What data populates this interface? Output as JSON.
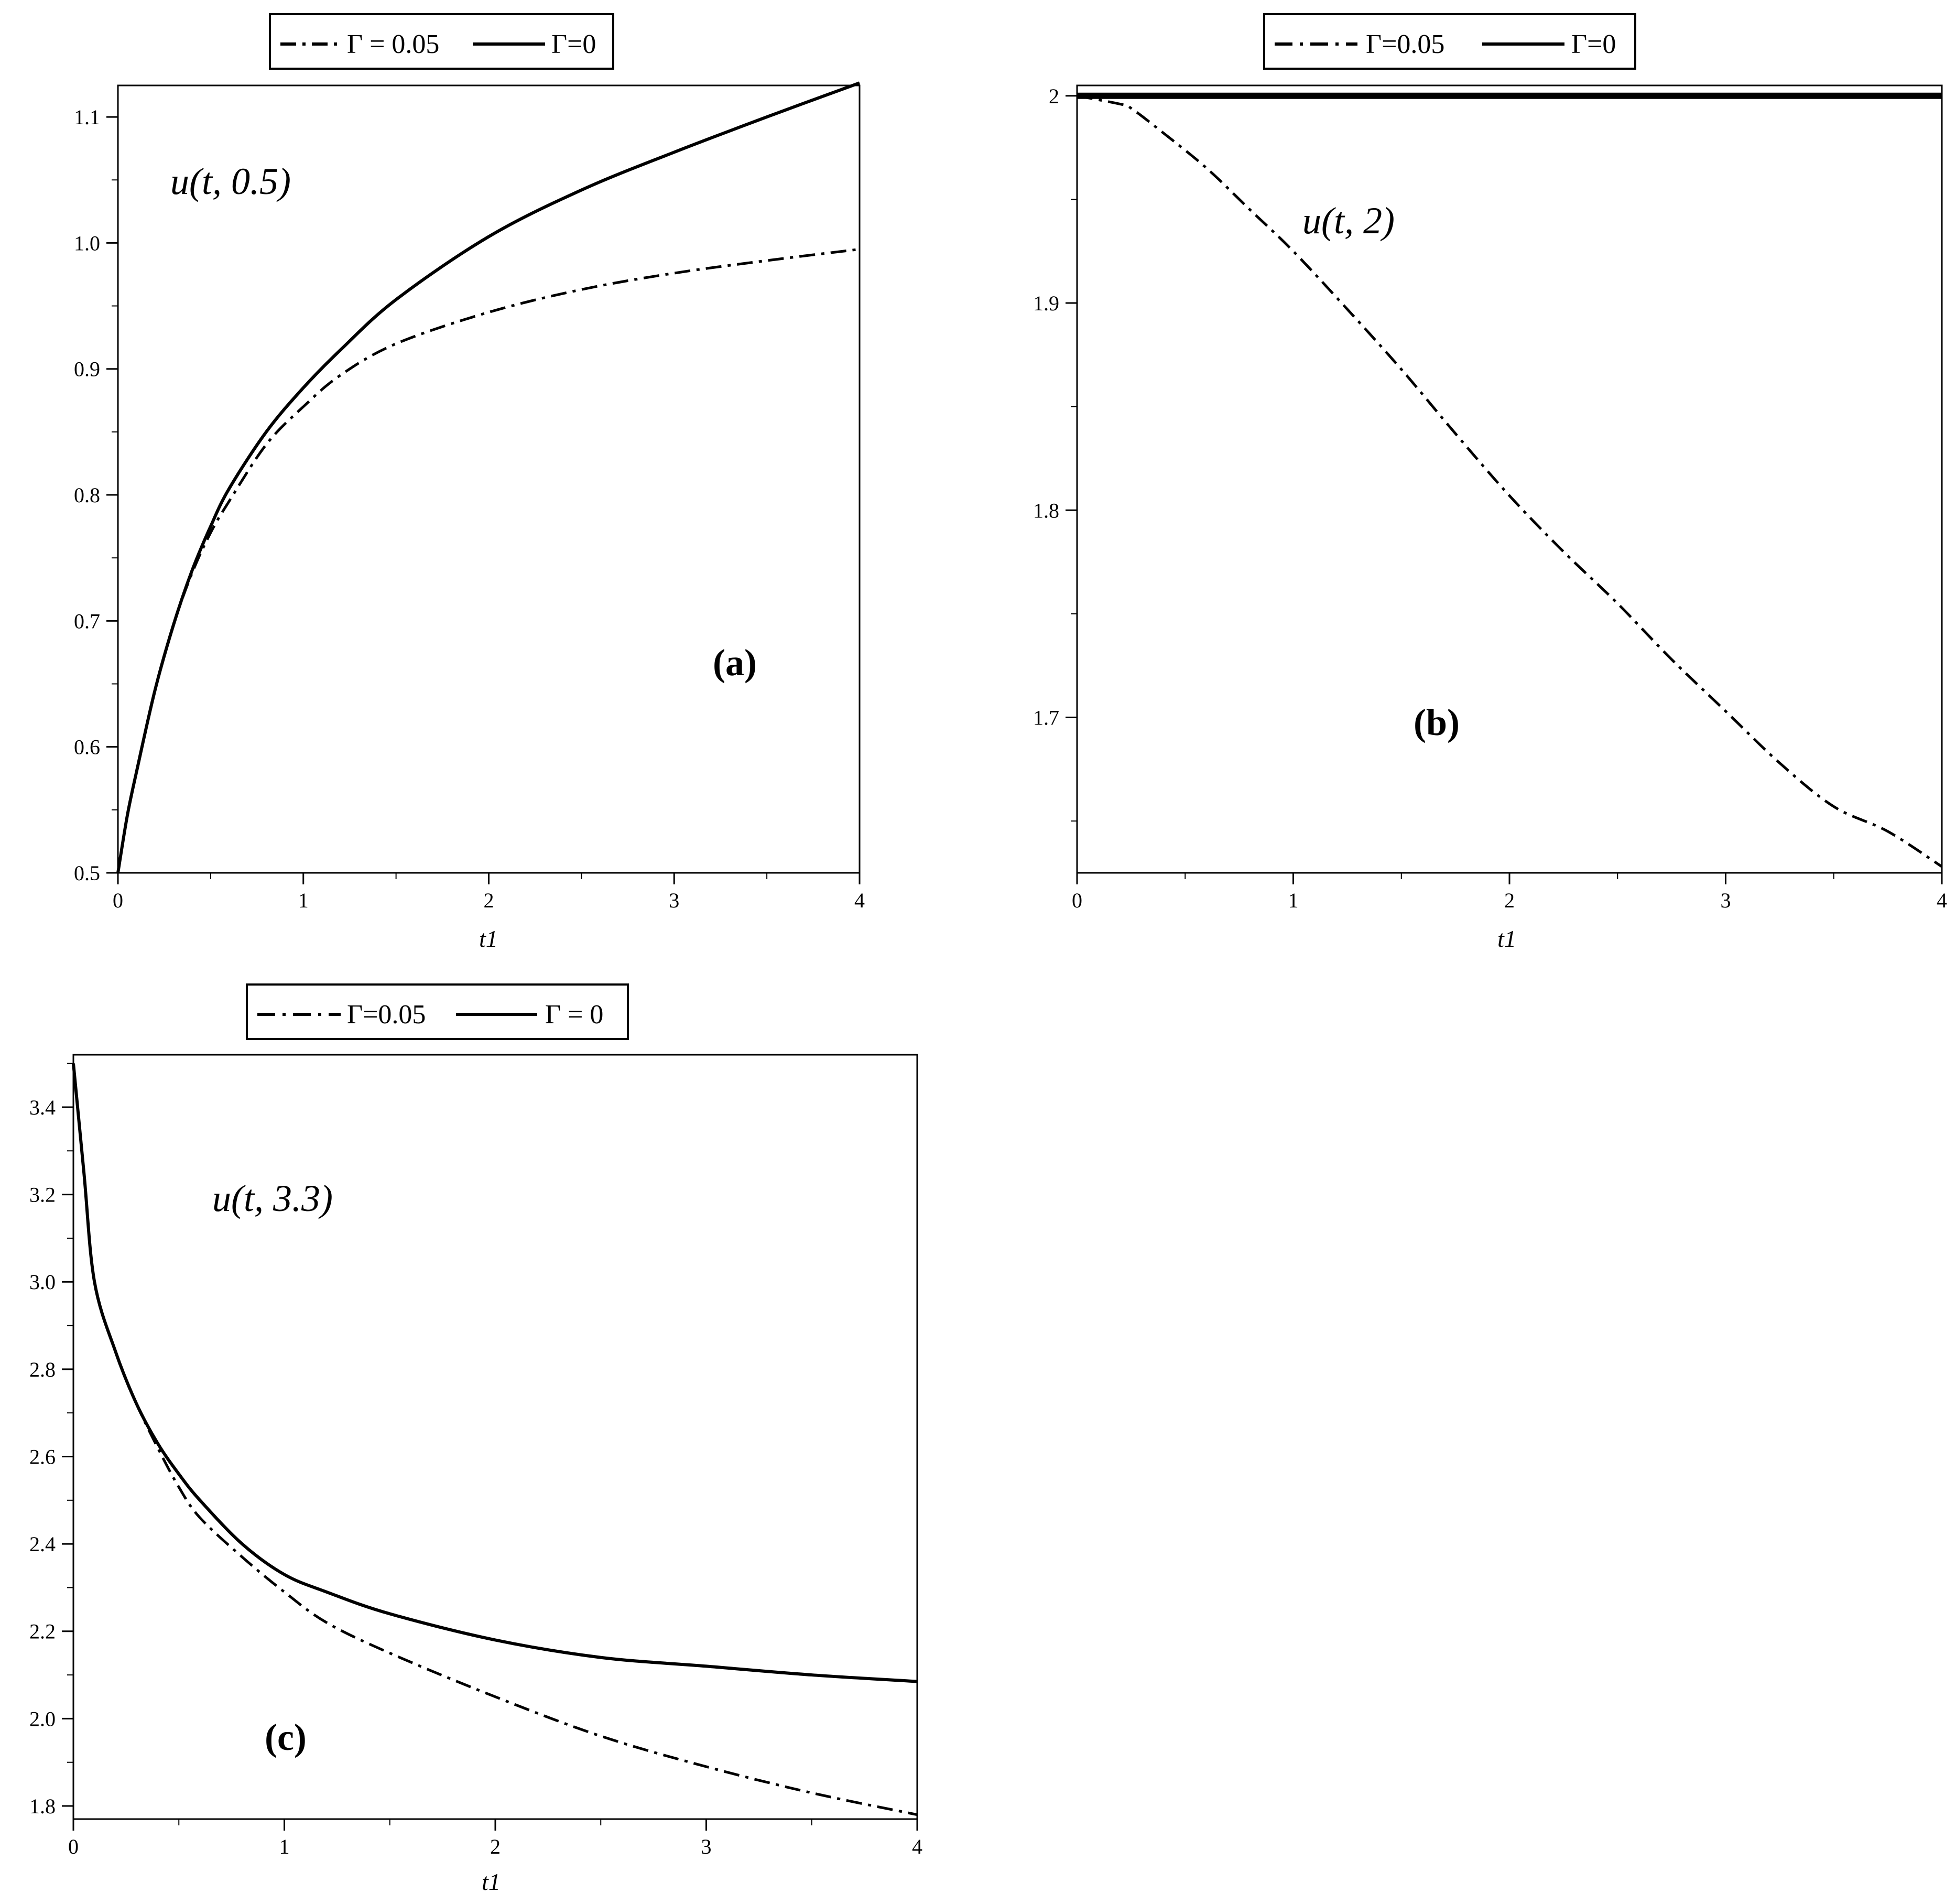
{
  "chart_data": [
    {
      "type": "line",
      "panel_label": "(a)",
      "annotation": "u(t, 0.5)",
      "xlabel": "t1",
      "ylabel": "",
      "xlim": [
        0,
        4
      ],
      "ylim": [
        0.5,
        1.125
      ],
      "xticks": [
        0,
        1,
        2,
        3,
        4
      ],
      "xtick_labels": [
        "0",
        "1",
        "2",
        "3",
        "4"
      ],
      "yticks": [
        0.5,
        0.6,
        0.7,
        0.8,
        0.9,
        1.0,
        1.1
      ],
      "ytick_labels": [
        "0.5",
        "0.6",
        "0.7",
        "0.8",
        "0.9",
        "1.0",
        "1.1"
      ],
      "legend_position": "top-center",
      "series": [
        {
          "name": "Γ = 0.05",
          "style": "dashdot",
          "x": [
            0,
            0.05,
            0.1,
            0.2,
            0.3,
            0.4,
            0.5,
            0.6,
            0.8,
            1.0,
            1.2,
            1.5,
            2.0,
            2.5,
            3.0,
            3.5,
            4.0
          ],
          "y": [
            0.5,
            0.545,
            0.58,
            0.645,
            0.697,
            0.738,
            0.77,
            0.795,
            0.84,
            0.87,
            0.895,
            0.92,
            0.945,
            0.963,
            0.976,
            0.986,
            0.995
          ]
        },
        {
          "name": "Γ=0",
          "style": "solid",
          "x": [
            0,
            0.05,
            0.1,
            0.2,
            0.3,
            0.4,
            0.5,
            0.6,
            0.8,
            1.0,
            1.2,
            1.5,
            2.0,
            2.5,
            3.0,
            3.5,
            4.0
          ],
          "y": [
            0.5,
            0.545,
            0.58,
            0.645,
            0.697,
            0.74,
            0.775,
            0.805,
            0.85,
            0.885,
            0.915,
            0.955,
            1.005,
            1.042,
            1.072,
            1.1,
            1.127
          ]
        }
      ]
    },
    {
      "type": "line",
      "panel_label": "(b)",
      "annotation": "u(t, 2)",
      "xlabel": "t1",
      "ylabel": "",
      "xlim": [
        0,
        4
      ],
      "ylim": [
        1.625,
        2.005
      ],
      "xticks": [
        0,
        1,
        2,
        3,
        4
      ],
      "xtick_labels": [
        "0",
        "1",
        "2",
        "3",
        "4"
      ],
      "yticks": [
        1.7,
        1.8,
        1.9,
        2.0
      ],
      "ytick_labels": [
        "1.7",
        "1.8",
        "1.9",
        "2"
      ],
      "legend_position": "top-center",
      "series": [
        {
          "name": "Γ=0.05",
          "style": "dashdot",
          "x": [
            0,
            0.2,
            0.25,
            0.4,
            0.6,
            0.8,
            1.0,
            1.25,
            1.5,
            1.75,
            2.0,
            2.25,
            2.5,
            2.75,
            3.0,
            3.25,
            3.5,
            3.75,
            4.0
          ],
          "y": [
            2.0,
            1.996,
            1.994,
            1.982,
            1.965,
            1.945,
            1.925,
            1.897,
            1.868,
            1.837,
            1.807,
            1.78,
            1.755,
            1.728,
            1.703,
            1.678,
            1.657,
            1.645,
            1.628
          ]
        },
        {
          "name": "Γ=0",
          "style": "solid",
          "x": [
            0,
            4
          ],
          "y": [
            2.0,
            2.0
          ]
        }
      ]
    },
    {
      "type": "line",
      "panel_label": "(c)",
      "annotation": "u(t, 3.3)",
      "xlabel": "t1",
      "ylabel": "",
      "xlim": [
        0,
        4
      ],
      "ylim": [
        1.77,
        3.52
      ],
      "xticks": [
        0,
        1,
        2,
        3,
        4
      ],
      "xtick_labels": [
        "0",
        "1",
        "2",
        "3",
        "4"
      ],
      "yticks": [
        1.8,
        2.0,
        2.2,
        2.4,
        2.6,
        2.8,
        3.0,
        3.2,
        3.4
      ],
      "ytick_labels": [
        "1.8",
        "2.0",
        "2.2",
        "2.4",
        "2.6",
        "2.8",
        "3.0",
        "3.2",
        "3.4"
      ],
      "legend_position": "top-center",
      "series": [
        {
          "name": "Γ=0.05",
          "style": "dashdot",
          "x": [
            0,
            0.05,
            0.1,
            0.2,
            0.3,
            0.4,
            0.5,
            0.6,
            0.8,
            1.0,
            1.2,
            1.5,
            2.0,
            2.5,
            3.0,
            3.5,
            4.0
          ],
          "y": [
            3.5,
            3.25,
            3.0,
            2.84,
            2.72,
            2.62,
            2.53,
            2.46,
            2.37,
            2.29,
            2.22,
            2.15,
            2.05,
            1.96,
            1.89,
            1.83,
            1.78
          ]
        },
        {
          "name": "Γ = 0",
          "style": "solid",
          "x": [
            0,
            0.05,
            0.1,
            0.2,
            0.3,
            0.4,
            0.5,
            0.6,
            0.8,
            1.0,
            1.2,
            1.5,
            2.0,
            2.5,
            3.0,
            3.5,
            4.0
          ],
          "y": [
            3.5,
            3.25,
            3.0,
            2.84,
            2.72,
            2.63,
            2.56,
            2.5,
            2.4,
            2.33,
            2.29,
            2.24,
            2.18,
            2.14,
            2.12,
            2.1,
            2.085
          ]
        }
      ]
    }
  ]
}
